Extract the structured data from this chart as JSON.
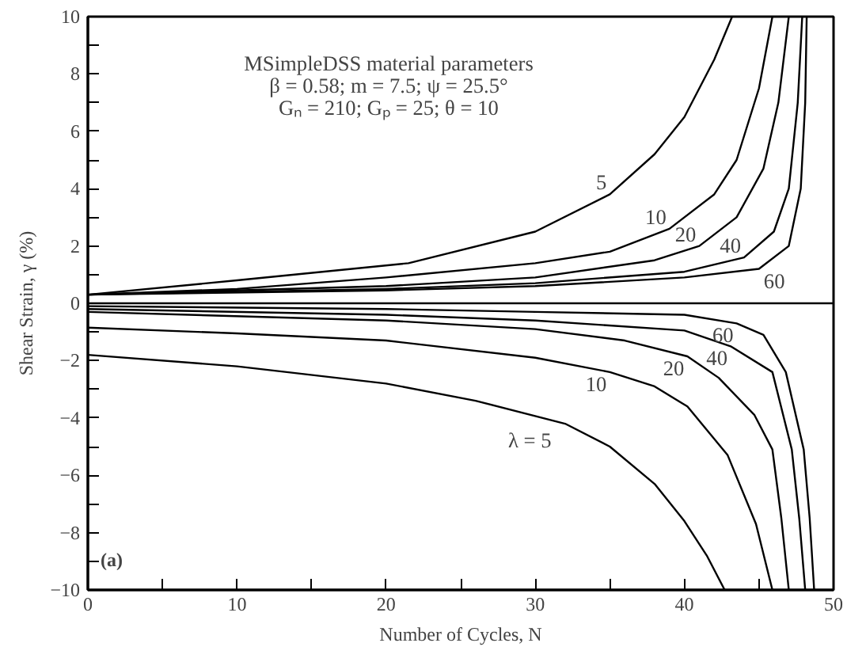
{
  "chart_data": {
    "type": "line",
    "xlabel": "Number of Cycles, N",
    "ylabel": "Shear Strain, γ (%)",
    "xlim": [
      0,
      50
    ],
    "ylim": [
      -10,
      10
    ],
    "xticks": [
      0,
      {
        "value": 5,
        "label": null
      },
      10,
      {
        "value": 15,
        "label": null
      },
      20,
      {
        "value": 25,
        "label": null
      },
      30,
      {
        "value": 35,
        "label": null
      },
      40,
      {
        "value": 45,
        "label": null
      },
      50
    ],
    "yticks": [
      -10,
      {
        "value": -9,
        "label": null
      },
      -8,
      {
        "value": -7,
        "label": null
      },
      -6,
      {
        "value": -5,
        "label": null
      },
      -4,
      {
        "value": -3,
        "label": null
      },
      -2,
      {
        "value": -1,
        "label": null
      },
      0,
      {
        "value": 1,
        "label": null
      },
      2,
      {
        "value": 3,
        "label": null
      },
      4,
      {
        "value": 5,
        "label": null
      },
      6,
      {
        "value": 7,
        "label": null
      },
      8,
      {
        "value": 9,
        "label": null
      },
      10
    ],
    "grid": false,
    "marker": "none",
    "line_style": "solid",
    "ref_lines": [
      {
        "axis": "y",
        "value": 0,
        "label": null,
        "color": "#000000"
      }
    ],
    "series": [
      {
        "color": "#000000",
        "x": [
          0,
          10,
          21.5,
          30,
          35,
          38,
          40,
          42,
          43.2
        ],
        "values": [
          0.3,
          0.8,
          1.4,
          2.5,
          3.8,
          5.2,
          6.5,
          8.5,
          10
        ]
      },
      {
        "color": "#000000",
        "x": [
          0,
          10,
          20,
          30,
          35,
          39,
          42,
          43.5,
          45,
          45.9
        ],
        "values": [
          0.3,
          0.5,
          0.9,
          1.4,
          1.8,
          2.6,
          3.8,
          5,
          7.5,
          10
        ]
      },
      {
        "color": "#000000",
        "x": [
          0,
          20,
          30,
          38,
          41,
          43.5,
          45.3,
          46.3,
          47
        ],
        "values": [
          0.3,
          0.6,
          0.9,
          1.5,
          2.0,
          3,
          4.7,
          7,
          10
        ]
      },
      {
        "color": "#000000",
        "x": [
          0,
          20,
          30,
          40,
          44,
          46,
          47,
          47.6,
          47.9
        ],
        "values": [
          0.3,
          0.5,
          0.7,
          1.1,
          1.6,
          2.5,
          4,
          7,
          10
        ]
      },
      {
        "color": "#000000",
        "x": [
          0,
          20,
          30,
          40,
          45,
          47,
          47.8,
          48.1,
          48.2
        ],
        "values": [
          0.3,
          0.45,
          0.6,
          0.9,
          1.2,
          2,
          4,
          7,
          10
        ]
      },
      {
        "color": "#000000",
        "x": [
          0,
          10,
          20,
          26,
          32,
          35,
          38,
          40,
          41.5,
          42.7
        ],
        "values": [
          -1.8,
          -2.2,
          -2.8,
          -3.4,
          -4.2,
          -5,
          -6.3,
          -7.6,
          -8.8,
          -10
        ]
      },
      {
        "color": "#000000",
        "x": [
          0,
          10,
          20,
          30,
          35,
          38,
          40.2,
          42.9,
          44.8,
          45.9
        ],
        "values": [
          -0.85,
          -1.05,
          -1.3,
          -1.9,
          -2.4,
          -2.9,
          -3.6,
          -5.3,
          -7.7,
          -10
        ]
      },
      {
        "color": "#000000",
        "x": [
          0,
          20,
          30,
          36,
          40.2,
          42.3,
          44.7,
          45.9,
          46.5,
          47
        ],
        "values": [
          -0.3,
          -0.6,
          -0.9,
          -1.3,
          -1.85,
          -2.6,
          -3.9,
          -5.1,
          -7.5,
          -10
        ]
      },
      {
        "color": "#000000",
        "x": [
          0,
          20,
          30,
          40,
          43.1,
          45.9,
          47.2,
          47.7,
          48.1
        ],
        "values": [
          -0.2,
          -0.4,
          -0.6,
          -0.95,
          -1.5,
          -2.4,
          -5.1,
          -7.5,
          -10
        ]
      },
      {
        "color": "#000000",
        "x": [
          0,
          20,
          30,
          40,
          43.5,
          45.3,
          46.8,
          48,
          48.4,
          48.7
        ],
        "values": [
          -0.1,
          -0.2,
          -0.3,
          -0.4,
          -0.7,
          -1.1,
          -2.4,
          -5.1,
          -7.5,
          -10
        ]
      }
    ],
    "annotations": [
      "MSimpleDSS material parameters",
      "β = 0.58; m = 7.5; ψ = 25.5°",
      "Gₙ = 210; Gₚ = 25; θ = 10",
      "(a)",
      {
        "text": "5",
        "x": 35,
        "y": 3.8
      },
      {
        "text": "10",
        "x": 39,
        "y": 2.6
      },
      {
        "text": "20",
        "x": 41,
        "y": 2.0
      },
      {
        "text": "40",
        "x": 44,
        "y": 1.6
      },
      {
        "text": "60",
        "x": 45,
        "y": 1.2
      },
      {
        "text": "λ =   5",
        "x": 32,
        "y": -4.2
      },
      {
        "text": "10",
        "x": 35,
        "y": -2.4
      },
      {
        "text": "20",
        "x": 40.2,
        "y": -1.85
      },
      {
        "text": "40",
        "x": 43.1,
        "y": -1.5
      },
      {
        "text": "60",
        "x": 43.5,
        "y": -0.7
      }
    ]
  }
}
